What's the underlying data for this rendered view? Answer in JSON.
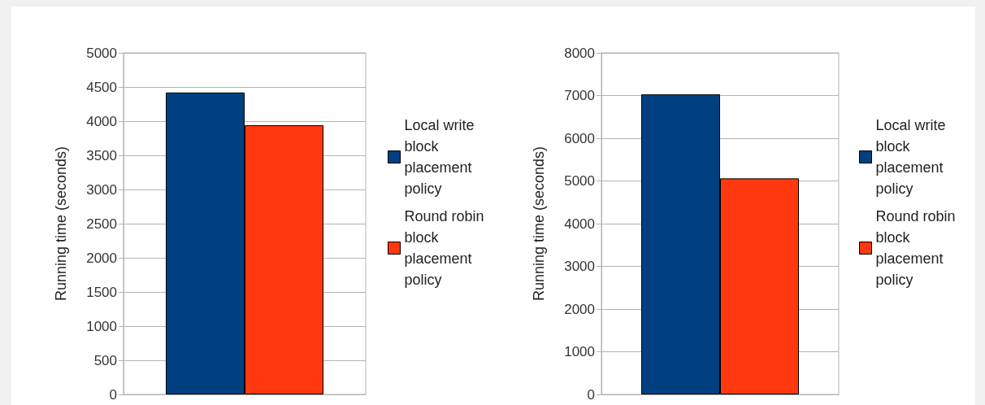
{
  "chart_data": [
    {
      "type": "bar",
      "categories": [
        null
      ],
      "ylabel": "Running time (seconds)",
      "ylim": [
        0,
        5000
      ],
      "yticks": [
        0,
        500,
        1000,
        1500,
        2000,
        2500,
        3000,
        3500,
        4000,
        4500,
        5000
      ],
      "grid": "y",
      "legend": "right",
      "series": [
        {
          "name": "Local write block placement policy",
          "color": "#004080",
          "values": [
            4420
          ]
        },
        {
          "name": "Round robin block placement policy",
          "color": "#ff3810",
          "values": [
            3940
          ]
        }
      ]
    },
    {
      "type": "bar",
      "categories": [
        null
      ],
      "ylabel": "Running time (seconds)",
      "ylim": [
        0,
        8000
      ],
      "yticks": [
        0,
        1000,
        2000,
        3000,
        4000,
        5000,
        6000,
        7000,
        8000
      ],
      "grid": "y",
      "legend": "right",
      "series": [
        {
          "name": "Local write block placement policy",
          "color": "#004080",
          "values": [
            7030
          ]
        },
        {
          "name": "Round robin block placement policy",
          "color": "#ff3810",
          "values": [
            5060
          ]
        }
      ]
    }
  ]
}
